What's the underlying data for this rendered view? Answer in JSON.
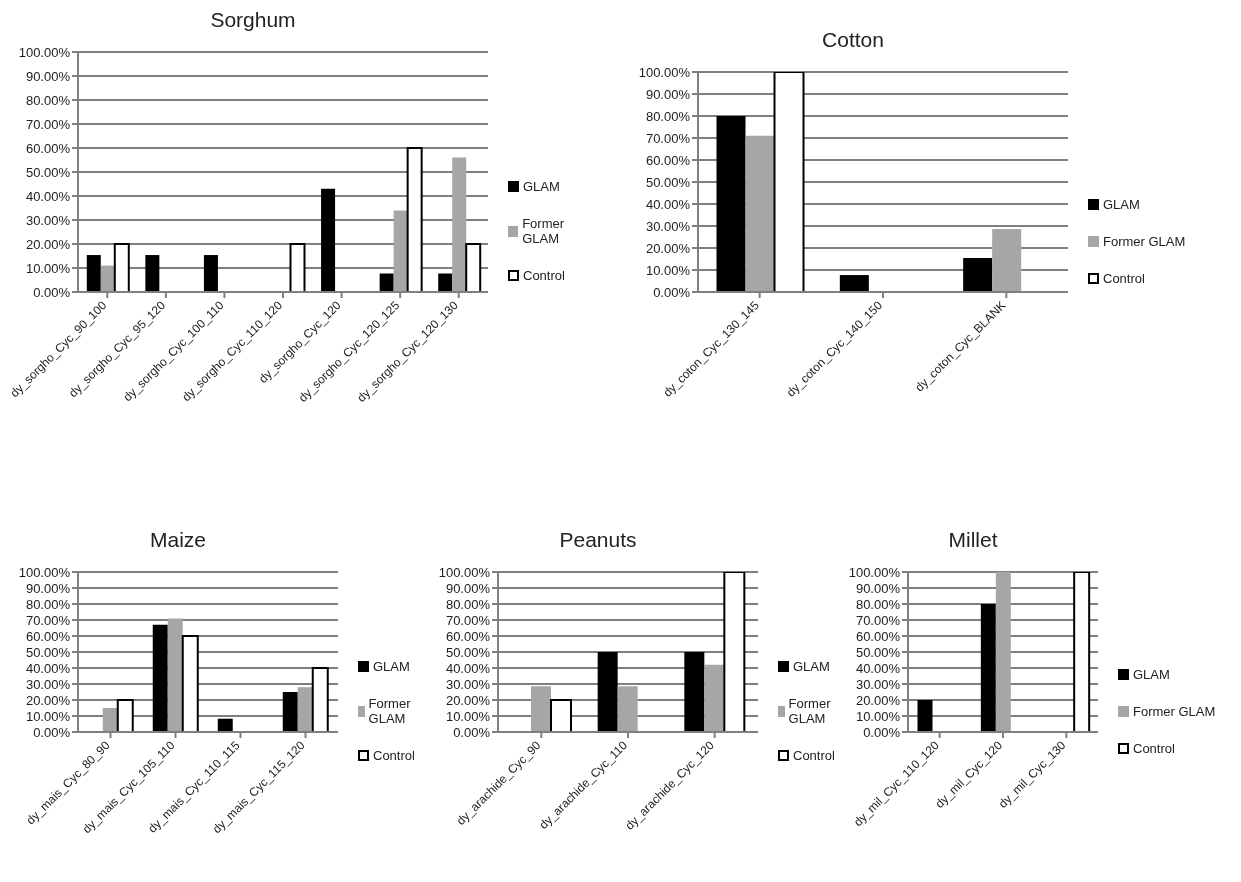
{
  "chart_data": [
    {
      "type": "bar",
      "title": "Sorghum",
      "categories": [
        "dy_sorgho_Cyc_90_100",
        "dy_sorgho_Cyc_95_120",
        "dy_sorgho_Cyc_100_110",
        "dy_sorgho_Cyc_110_120",
        "dy_sorgho_Cyc_120",
        "dy_sorgho_Cyc_120_125",
        "dy_sorgho_Cyc_120_130"
      ],
      "series": [
        {
          "name": "GLAM",
          "color": "#000000",
          "values": [
            15.4,
            15.4,
            15.4,
            null,
            43,
            7.7,
            7.7
          ]
        },
        {
          "name": "Former GLAM",
          "color": "#a6a6a6",
          "values": [
            11,
            null,
            null,
            null,
            null,
            34,
            56
          ]
        },
        {
          "name": "Control",
          "color": "#ffffff",
          "values": [
            20,
            null,
            null,
            20,
            null,
            60,
            20
          ]
        }
      ],
      "ylim": [
        0,
        100
      ],
      "yticks": [
        {
          "value": 0,
          "label": "0.00%"
        },
        {
          "value": 10,
          "label": "10.00%"
        },
        {
          "value": 20,
          "label": "20.00%"
        },
        {
          "value": 30,
          "label": "30.00%"
        },
        {
          "value": 40,
          "label": "40.00%"
        },
        {
          "value": 50,
          "label": "50.00%"
        },
        {
          "value": 60,
          "label": "60.00%"
        },
        {
          "value": 70,
          "label": "70.00%"
        },
        {
          "value": 80,
          "label": "80.00%"
        },
        {
          "value": 90,
          "label": "90.00%"
        },
        {
          "value": 100,
          "label": "100.00%"
        }
      ],
      "grid": "y",
      "legend": "right"
    },
    {
      "type": "bar",
      "title": "Cotton",
      "categories": [
        "dy_coton_Cyc_130_145",
        "dy_coton_Cyc_140_150",
        "dy_coton_Cyc_BLANK"
      ],
      "series": [
        {
          "name": "GLAM",
          "color": "#000000",
          "values": [
            80,
            7.7,
            15.4
          ]
        },
        {
          "name": "Former GLAM",
          "color": "#a6a6a6",
          "values": [
            71,
            null,
            28.6
          ]
        },
        {
          "name": "Control",
          "color": "#ffffff",
          "values": [
            100,
            null,
            null
          ]
        }
      ],
      "ylim": [
        0,
        100
      ],
      "yticks": [
        {
          "value": 0,
          "label": "0.00%"
        },
        {
          "value": 10,
          "label": "10.00%"
        },
        {
          "value": 20,
          "label": "20.00%"
        },
        {
          "value": 30,
          "label": "30.00%"
        },
        {
          "value": 40,
          "label": "40.00%"
        },
        {
          "value": 50,
          "label": "50.00%"
        },
        {
          "value": 60,
          "label": "60.00%"
        },
        {
          "value": 70,
          "label": "70.00%"
        },
        {
          "value": 80,
          "label": "80.00%"
        },
        {
          "value": 90,
          "label": "90.00%"
        },
        {
          "value": 100,
          "label": "100.00%"
        }
      ],
      "grid": "y",
      "legend": "right"
    },
    {
      "type": "bar",
      "title": "Maize",
      "categories": [
        "dy_mais_Cyc_80_90",
        "dy_mais_Cyc_105_110",
        "dy_mais_Cyc_110_115",
        "dy_mais_Cyc_115_120"
      ],
      "series": [
        {
          "name": "GLAM",
          "color": "#000000",
          "values": [
            null,
            67,
            8.3,
            25
          ]
        },
        {
          "name": "Former GLAM",
          "color": "#a6a6a6",
          "values": [
            15,
            71,
            null,
            28
          ]
        },
        {
          "name": "Control",
          "color": "#ffffff",
          "values": [
            20,
            60,
            null,
            40
          ]
        }
      ],
      "ylim": [
        0,
        100
      ],
      "yticks": [
        {
          "value": 0,
          "label": "0.00%"
        },
        {
          "value": 10,
          "label": "10.00%"
        },
        {
          "value": 20,
          "label": "20.00%"
        },
        {
          "value": 30,
          "label": "30.00%"
        },
        {
          "value": 40,
          "label": "40.00%"
        },
        {
          "value": 50,
          "label": "50.00%"
        },
        {
          "value": 60,
          "label": "60.00%"
        },
        {
          "value": 70,
          "label": "70.00%"
        },
        {
          "value": 80,
          "label": "80.00%"
        },
        {
          "value": 90,
          "label": "90.00%"
        },
        {
          "value": 100,
          "label": "100.00%"
        }
      ],
      "grid": "y",
      "legend": "right"
    },
    {
      "type": "bar",
      "title": "Peanuts",
      "categories": [
        "dy_arachide_Cyc_90",
        "dy_arachide_Cyc_110",
        "dy_arachide_Cyc_120"
      ],
      "series": [
        {
          "name": "GLAM",
          "color": "#000000",
          "values": [
            null,
            50,
            50
          ]
        },
        {
          "name": "Former GLAM",
          "color": "#a6a6a6",
          "values": [
            28.6,
            28.6,
            42
          ]
        },
        {
          "name": "Control",
          "color": "#ffffff",
          "values": [
            20,
            null,
            100
          ]
        }
      ],
      "ylim": [
        0,
        100
      ],
      "yticks": [
        {
          "value": 0,
          "label": "0.00%"
        },
        {
          "value": 10,
          "label": "10.00%"
        },
        {
          "value": 20,
          "label": "20.00%"
        },
        {
          "value": 30,
          "label": "30.00%"
        },
        {
          "value": 40,
          "label": "40.00%"
        },
        {
          "value": 50,
          "label": "50.00%"
        },
        {
          "value": 60,
          "label": "60.00%"
        },
        {
          "value": 70,
          "label": "70.00%"
        },
        {
          "value": 80,
          "label": "80.00%"
        },
        {
          "value": 90,
          "label": "90.00%"
        },
        {
          "value": 100,
          "label": "100.00%"
        }
      ],
      "grid": "y",
      "legend": "right"
    },
    {
      "type": "bar",
      "title": "Millet",
      "categories": [
        "dy_mil_Cyc_110_120",
        "dy_mil_Cyc_120",
        "dy_mil_Cyc_130"
      ],
      "series": [
        {
          "name": "GLAM",
          "color": "#000000",
          "values": [
            20,
            80,
            null
          ]
        },
        {
          "name": "Former GLAM",
          "color": "#a6a6a6",
          "values": [
            null,
            100,
            null
          ]
        },
        {
          "name": "Control",
          "color": "#ffffff",
          "values": [
            null,
            null,
            100
          ]
        }
      ],
      "ylim": [
        0,
        100
      ],
      "yticks": [
        {
          "value": 0,
          "label": "0.00%"
        },
        {
          "value": 10,
          "label": "10.00%"
        },
        {
          "value": 20,
          "label": "20.00%"
        },
        {
          "value": 30,
          "label": "30.00%"
        },
        {
          "value": 40,
          "label": "40.00%"
        },
        {
          "value": 50,
          "label": "50.00%"
        },
        {
          "value": 60,
          "label": "60.00%"
        },
        {
          "value": 70,
          "label": "70.00%"
        },
        {
          "value": 80,
          "label": "80.00%"
        },
        {
          "value": 90,
          "label": "90.00%"
        },
        {
          "value": 100,
          "label": "100.00%"
        }
      ],
      "grid": "y",
      "legend": "right"
    }
  ]
}
